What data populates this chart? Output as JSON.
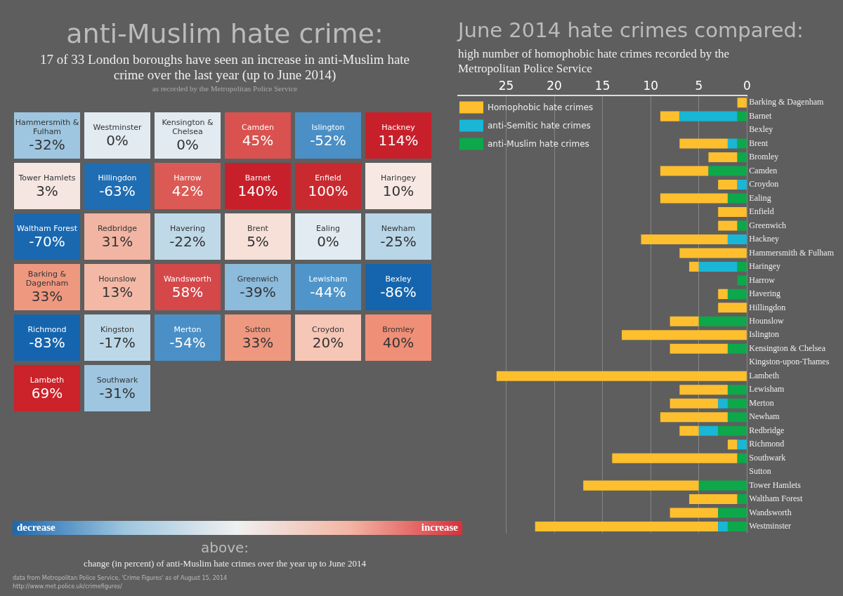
{
  "chart_data": [
    {
      "type": "other",
      "title": "anti-Muslim hate crime:",
      "subtitle": "17 of 33 London boroughs have seen an increase in anti-Muslim hate crime over the last year (up to June 2014)",
      "categories": [
        "Hammersmith & Fulham",
        "Westminster",
        "Kensington & Chelsea",
        "Camden",
        "Islington",
        "Hackney",
        "Tower Hamlets",
        "Hillingdon",
        "Harrow",
        "Barnet",
        "Enfield",
        "Haringey",
        "Waltham Forest",
        "Redbridge",
        "Havering",
        "Brent",
        "Ealing",
        "Newham",
        "Barking & Dagenham",
        "Hounslow",
        "Wandsworth",
        "Greenwich",
        "Lewisham",
        "Bexley",
        "Richmond",
        "Kingston",
        "Merton",
        "Sutton",
        "Croydon",
        "Bromley",
        "Lambeth",
        "Southwark"
      ],
      "values": [
        -32,
        0,
        0,
        45,
        -52,
        114,
        3,
        -63,
        42,
        140,
        100,
        10,
        -70,
        31,
        -22,
        5,
        0,
        -25,
        33,
        13,
        58,
        -39,
        -44,
        -86,
        -83,
        -17,
        -54,
        33,
        20,
        40,
        69,
        -31
      ],
      "colors": [
        "#9ec6e0",
        "#e2ebf2",
        "#e2ebf2",
        "#d9524f",
        "#4a8fc6",
        "#c8202b",
        "#f5e6e2",
        "#1f6db3",
        "#dc5a55",
        "#c8202b",
        "#c92a2f",
        "#f8e8e3",
        "#1a68b0",
        "#f3b5a3",
        "#bfd9e8",
        "#f6e0d8",
        "#e2ebf2",
        "#b8d6e8",
        "#ef9880",
        "#f3b9a6",
        "#d4484a",
        "#8cbbdc",
        "#4f95c9",
        "#1565ae",
        "#1565ae",
        "#bcd8e8",
        "#4a8fc6",
        "#ef9880",
        "#f6c6b6",
        "#ef8f77",
        "#cc2229",
        "#9ec6e0"
      ],
      "value_labels": [
        "-32%",
        "0%",
        "0%",
        "45%",
        "-52%",
        "114%",
        "3%",
        "-63%",
        "42%",
        "140%",
        "100%",
        "10%",
        "-70%",
        "31%",
        "-22%",
        "5%",
        "0%",
        "-25%",
        "33%",
        "13%",
        "58%",
        "-39%",
        "-44%",
        "-86%",
        "-83%",
        "-17%",
        "-54%",
        "33%",
        "20%",
        "40%",
        "69%",
        "-31%"
      ],
      "annotations": [
        "as recorded by the Metropolitan Police Service",
        "decrease",
        "increase",
        "above:",
        "change (in percent) of anti-Muslim hate crimes over the year up to June 2014",
        "data from Metropolitan Police Service, 'Crime Figures' as of August 15, 2014",
        "http://www.met.police.uk/crimefigures/"
      ]
    },
    {
      "type": "bar",
      "orientation": "horizontal",
      "stacked": true,
      "title": "June 2014 hate crimes compared:",
      "subtitle": "high number of homophobic hate crimes recorded by the Metropolitan Police Service",
      "categories": [
        "Barking & Dagenham",
        "Barnet",
        "Bexley",
        "Brent",
        "Bromley",
        "Camden",
        "Croydon",
        "Ealing",
        "Enfield",
        "Greenwich",
        "Hackney",
        "Hammersmith & Fulham",
        "Haringey",
        "Harrow",
        "Havering",
        "Hillingdon",
        "Hounslow",
        "Islington",
        "Kensington & Chelsea",
        "Kingston-upon-Thames",
        "Lambeth",
        "Lewisham",
        "Merton",
        "Newham",
        "Redbridge",
        "Richmond",
        "Southwark",
        "Sutton",
        "Tower Hamlets",
        "Waltham Forest",
        "Wandsworth",
        "Westminster"
      ],
      "series": [
        {
          "name": "anti-Muslim hate crimes",
          "color": "#0ca84a",
          "values": [
            0,
            1,
            0,
            1,
            1,
            4,
            0,
            2,
            0,
            1,
            0,
            0,
            1,
            1,
            2,
            0,
            5,
            0,
            2,
            0,
            0,
            2,
            2,
            2,
            3,
            0,
            1,
            0,
            5,
            1,
            3,
            2
          ]
        },
        {
          "name": "anti-Semitic hate crimes",
          "color": "#19b6d6",
          "values": [
            0,
            6,
            0,
            1,
            0,
            0,
            1,
            0,
            0,
            0,
            2,
            0,
            4,
            0,
            0,
            0,
            0,
            0,
            0,
            0,
            0,
            0,
            1,
            0,
            2,
            1,
            0,
            0,
            0,
            0,
            0,
            1
          ]
        },
        {
          "name": "Homophobic hate crimes",
          "color": "#fdbf2d",
          "values": [
            1,
            2,
            0,
            5,
            3,
            5,
            2,
            7,
            3,
            2,
            9,
            7,
            1,
            0,
            1,
            3,
            3,
            13,
            6,
            0,
            26,
            5,
            5,
            7,
            2,
            1,
            13,
            0,
            12,
            5,
            5,
            19
          ]
        }
      ],
      "xlim": [
        30,
        0
      ],
      "xticks": [
        25,
        20,
        15,
        10,
        5,
        0
      ],
      "grid": "x",
      "legend": "top left"
    }
  ]
}
